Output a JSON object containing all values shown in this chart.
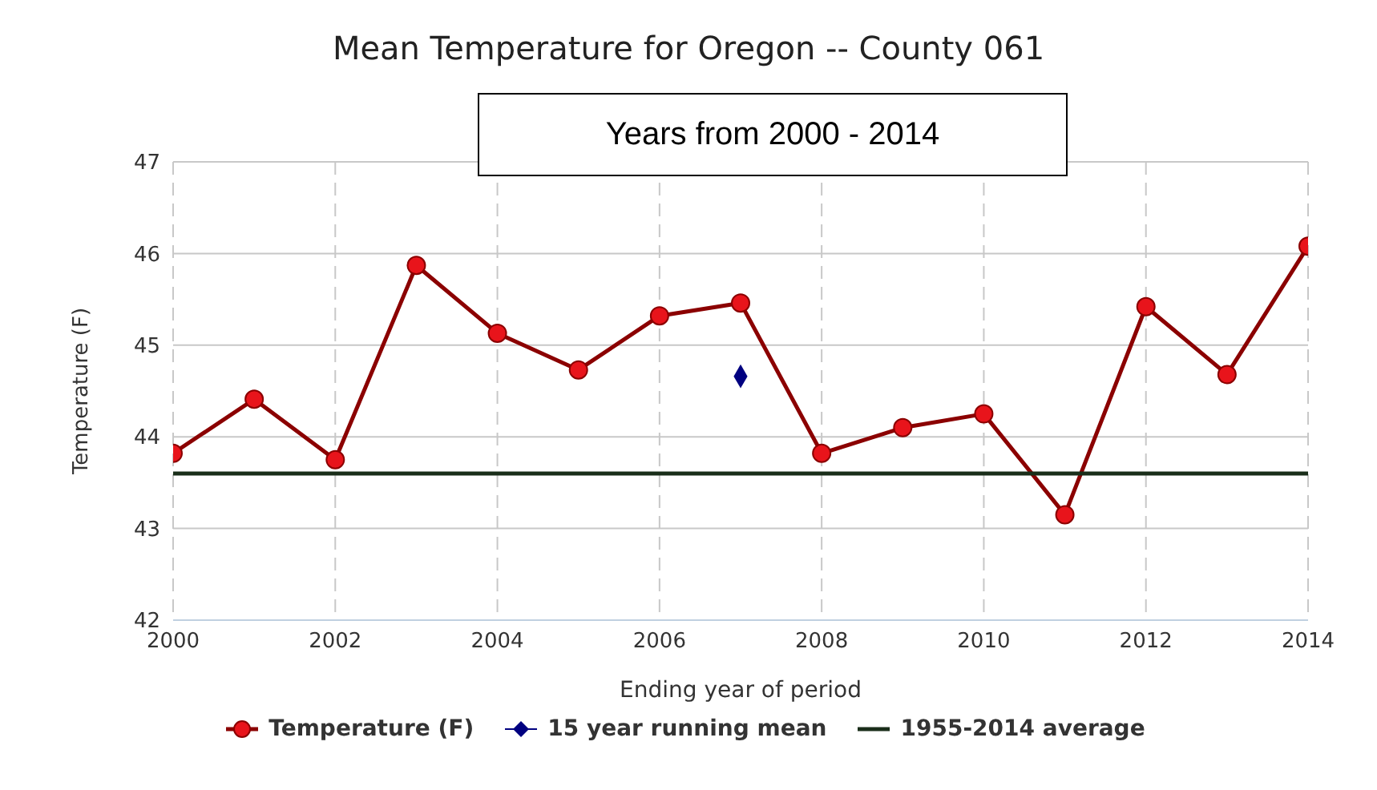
{
  "chart_data": {
    "type": "line",
    "title": "Mean Temperature for Oregon -- County 061",
    "annotations": [
      "Years from 2000 - 2014"
    ],
    "xlabel": "Ending year of period",
    "ylabel": "Temperature (F)",
    "xlim": [
      2000,
      2014
    ],
    "xticks": [
      2000,
      2002,
      2004,
      2006,
      2008,
      2010,
      2012,
      2014
    ],
    "ylim": [
      42,
      47
    ],
    "yticks": [
      42,
      43,
      44,
      45,
      46,
      47
    ],
    "grid": true,
    "legend": "bottom",
    "series": [
      {
        "name": "Temperature (F)",
        "marker": "circle",
        "color": "#8b0000",
        "x": [
          2000,
          2001,
          2002,
          2003,
          2004,
          2005,
          2006,
          2007,
          2008,
          2009,
          2010,
          2011,
          2012,
          2013,
          2014
        ],
        "values": [
          43.82,
          44.41,
          43.75,
          45.87,
          45.13,
          44.73,
          45.32,
          45.46,
          43.82,
          44.1,
          44.25,
          43.15,
          45.42,
          44.68,
          46.08
        ]
      },
      {
        "name": "15 year running mean",
        "type": "scatter",
        "marker": "diamond",
        "color": "#000080",
        "x": [
          2007
        ],
        "values": [
          44.66
        ]
      },
      {
        "name": "1955-2014 average",
        "marker": "none",
        "color": "#1a2e1a",
        "x": [
          2000,
          2014
        ],
        "values": [
          43.6,
          43.6
        ]
      }
    ]
  }
}
